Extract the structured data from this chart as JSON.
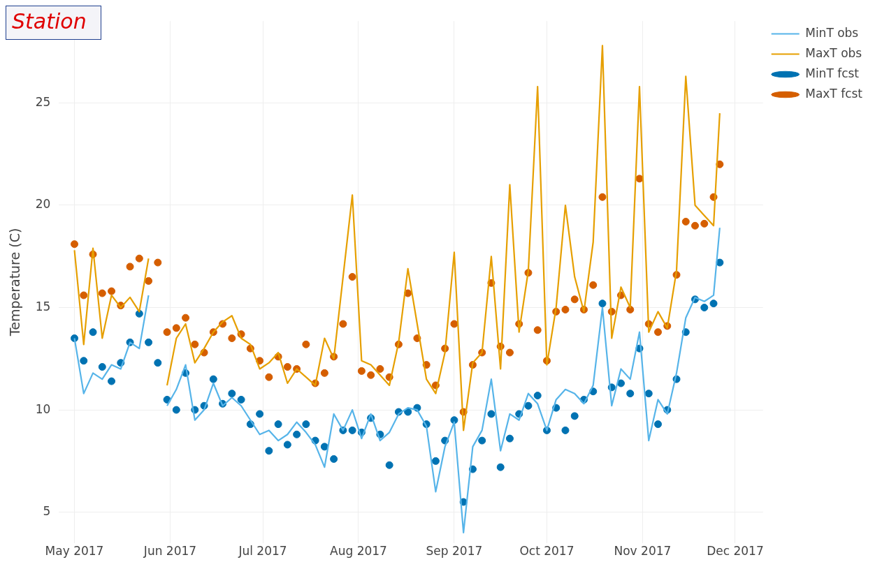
{
  "chart_data": {
    "type": "line",
    "annotations": [
      "Station"
    ],
    "ylabel": "Temperature (C)",
    "x": [
      "2017-05-01",
      "2017-05-04",
      "2017-05-07",
      "2017-05-10",
      "2017-05-13",
      "2017-05-16",
      "2017-05-19",
      "2017-05-22",
      "2017-05-25",
      "2017-05-28",
      "2017-05-31",
      "2017-06-03",
      "2017-06-06",
      "2017-06-09",
      "2017-06-12",
      "2017-06-15",
      "2017-06-18",
      "2017-06-21",
      "2017-06-24",
      "2017-06-27",
      "2017-06-30",
      "2017-07-03",
      "2017-07-06",
      "2017-07-09",
      "2017-07-12",
      "2017-07-15",
      "2017-07-18",
      "2017-07-21",
      "2017-07-24",
      "2017-07-27",
      "2017-07-30",
      "2017-08-02",
      "2017-08-05",
      "2017-08-08",
      "2017-08-11",
      "2017-08-14",
      "2017-08-17",
      "2017-08-20",
      "2017-08-23",
      "2017-08-26",
      "2017-08-29",
      "2017-09-01",
      "2017-09-04",
      "2017-09-07",
      "2017-09-10",
      "2017-09-13",
      "2017-09-16",
      "2017-09-19",
      "2017-09-22",
      "2017-09-25",
      "2017-09-28",
      "2017-10-01",
      "2017-10-04",
      "2017-10-07",
      "2017-10-10",
      "2017-10-13",
      "2017-10-16",
      "2017-10-19",
      "2017-10-22",
      "2017-10-25",
      "2017-10-28",
      "2017-10-31",
      "2017-11-03",
      "2017-11-06",
      "2017-11-09",
      "2017-11-12",
      "2017-11-15",
      "2017-11-18",
      "2017-11-21",
      "2017-11-24",
      "2017-11-26"
    ],
    "series": [
      {
        "name": "MinT obs",
        "type": "line",
        "color": "#56b4e9",
        "values": [
          13.5,
          10.8,
          11.8,
          11.5,
          12.2,
          12.0,
          13.3,
          13.0,
          15.6,
          null,
          10.2,
          11.0,
          12.2,
          9.5,
          10.0,
          11.3,
          10.2,
          10.6,
          10.2,
          9.5,
          8.8,
          9.0,
          8.5,
          8.8,
          9.4,
          8.9,
          8.3,
          7.2,
          9.8,
          9.0,
          10.0,
          8.6,
          9.8,
          8.5,
          8.9,
          9.8,
          10.1,
          10.0,
          9.2,
          6.0,
          8.2,
          9.4,
          4.0,
          8.2,
          9.0,
          11.5,
          8.0,
          9.8,
          9.5,
          10.8,
          10.3,
          9.0,
          10.5,
          11.0,
          10.8,
          10.3,
          11.2,
          15.0,
          10.2,
          12.0,
          11.5,
          13.8,
          8.5,
          10.5,
          9.8,
          11.8,
          14.5,
          15.5,
          15.3,
          15.6,
          18.9
        ]
      },
      {
        "name": "MaxT obs",
        "type": "line",
        "color": "#e69f00",
        "values": [
          17.8,
          13.2,
          17.9,
          13.5,
          15.6,
          15.0,
          15.5,
          14.8,
          17.4,
          null,
          11.2,
          13.5,
          14.2,
          12.3,
          13.0,
          13.8,
          14.3,
          14.6,
          13.5,
          13.2,
          12.0,
          12.3,
          12.8,
          11.3,
          12.0,
          11.6,
          11.2,
          13.5,
          12.5,
          16.5,
          20.5,
          12.4,
          12.2,
          11.7,
          11.2,
          13.3,
          16.9,
          14.2,
          11.5,
          10.8,
          12.8,
          17.7,
          9.0,
          12.3,
          12.8,
          17.5,
          12.0,
          21.0,
          13.8,
          16.8,
          25.8,
          12.2,
          15.0,
          20.0,
          16.5,
          14.8,
          18.2,
          27.8,
          13.5,
          16.0,
          15.0,
          25.8,
          13.8,
          14.8,
          14.0,
          16.8,
          26.3,
          20.0,
          19.5,
          19.0,
          24.5
        ]
      },
      {
        "name": "MinT fcst",
        "type": "scatter",
        "marker": "circle",
        "color": "#0072b2",
        "values": [
          13.5,
          12.4,
          13.8,
          12.1,
          11.4,
          12.3,
          13.3,
          14.7,
          13.3,
          12.3,
          10.5,
          10.0,
          11.8,
          10.0,
          10.2,
          11.5,
          10.3,
          10.8,
          10.5,
          9.3,
          9.8,
          8.0,
          9.3,
          8.3,
          8.8,
          9.3,
          8.5,
          8.2,
          7.6,
          9.0,
          9.0,
          8.9,
          9.6,
          8.8,
          7.3,
          9.9,
          9.9,
          10.1,
          9.3,
          7.5,
          8.5,
          9.5,
          5.5,
          7.1,
          8.5,
          9.8,
          7.2,
          8.6,
          9.8,
          10.2,
          10.7,
          9.0,
          10.1,
          9.0,
          9.7,
          10.5,
          10.9,
          15.2,
          11.1,
          11.3,
          10.8,
          13.0,
          10.8,
          9.3,
          10.0,
          11.5,
          13.8,
          15.4,
          15.0,
          15.2,
          17.2
        ]
      },
      {
        "name": "MaxT fcst",
        "type": "scatter",
        "marker": "circle",
        "color": "#d55e00",
        "values": [
          18.1,
          15.6,
          17.6,
          15.7,
          15.8,
          15.1,
          17.0,
          17.4,
          16.3,
          17.2,
          13.8,
          14.0,
          14.5,
          13.2,
          12.8,
          13.8,
          14.2,
          13.5,
          13.7,
          13.0,
          12.4,
          11.6,
          12.6,
          12.1,
          12.0,
          13.2,
          11.3,
          11.8,
          12.6,
          14.2,
          16.5,
          11.9,
          11.7,
          12.0,
          11.6,
          13.2,
          15.7,
          13.5,
          12.2,
          11.2,
          13.0,
          14.2,
          9.9,
          12.2,
          12.8,
          16.2,
          13.1,
          12.8,
          14.2,
          16.7,
          13.9,
          12.4,
          14.8,
          14.9,
          15.4,
          14.9,
          16.1,
          20.4,
          14.8,
          15.6,
          14.9,
          21.3,
          14.2,
          13.8,
          14.1,
          16.6,
          19.2,
          19.0,
          19.1,
          20.4,
          22.0
        ]
      }
    ],
    "xlim": [
      "2017-04-26",
      "2017-12-10"
    ],
    "xticks": [
      {
        "value": "2017-05-01",
        "label": "May 2017"
      },
      {
        "value": "2017-06-01",
        "label": "Jun 2017"
      },
      {
        "value": "2017-07-01",
        "label": "Jul 2017"
      },
      {
        "value": "2017-08-01",
        "label": "Aug 2017"
      },
      {
        "value": "2017-09-01",
        "label": "Sep 2017"
      },
      {
        "value": "2017-10-01",
        "label": "Oct 2017"
      },
      {
        "value": "2017-11-01",
        "label": "Nov 2017"
      },
      {
        "value": "2017-12-01",
        "label": "Dec 2017"
      }
    ],
    "ylim": [
      3.5,
      29
    ],
    "yticks": [
      5,
      10,
      15,
      20,
      25
    ],
    "grid": true,
    "legend": "top right",
    "line_style": "solid"
  }
}
